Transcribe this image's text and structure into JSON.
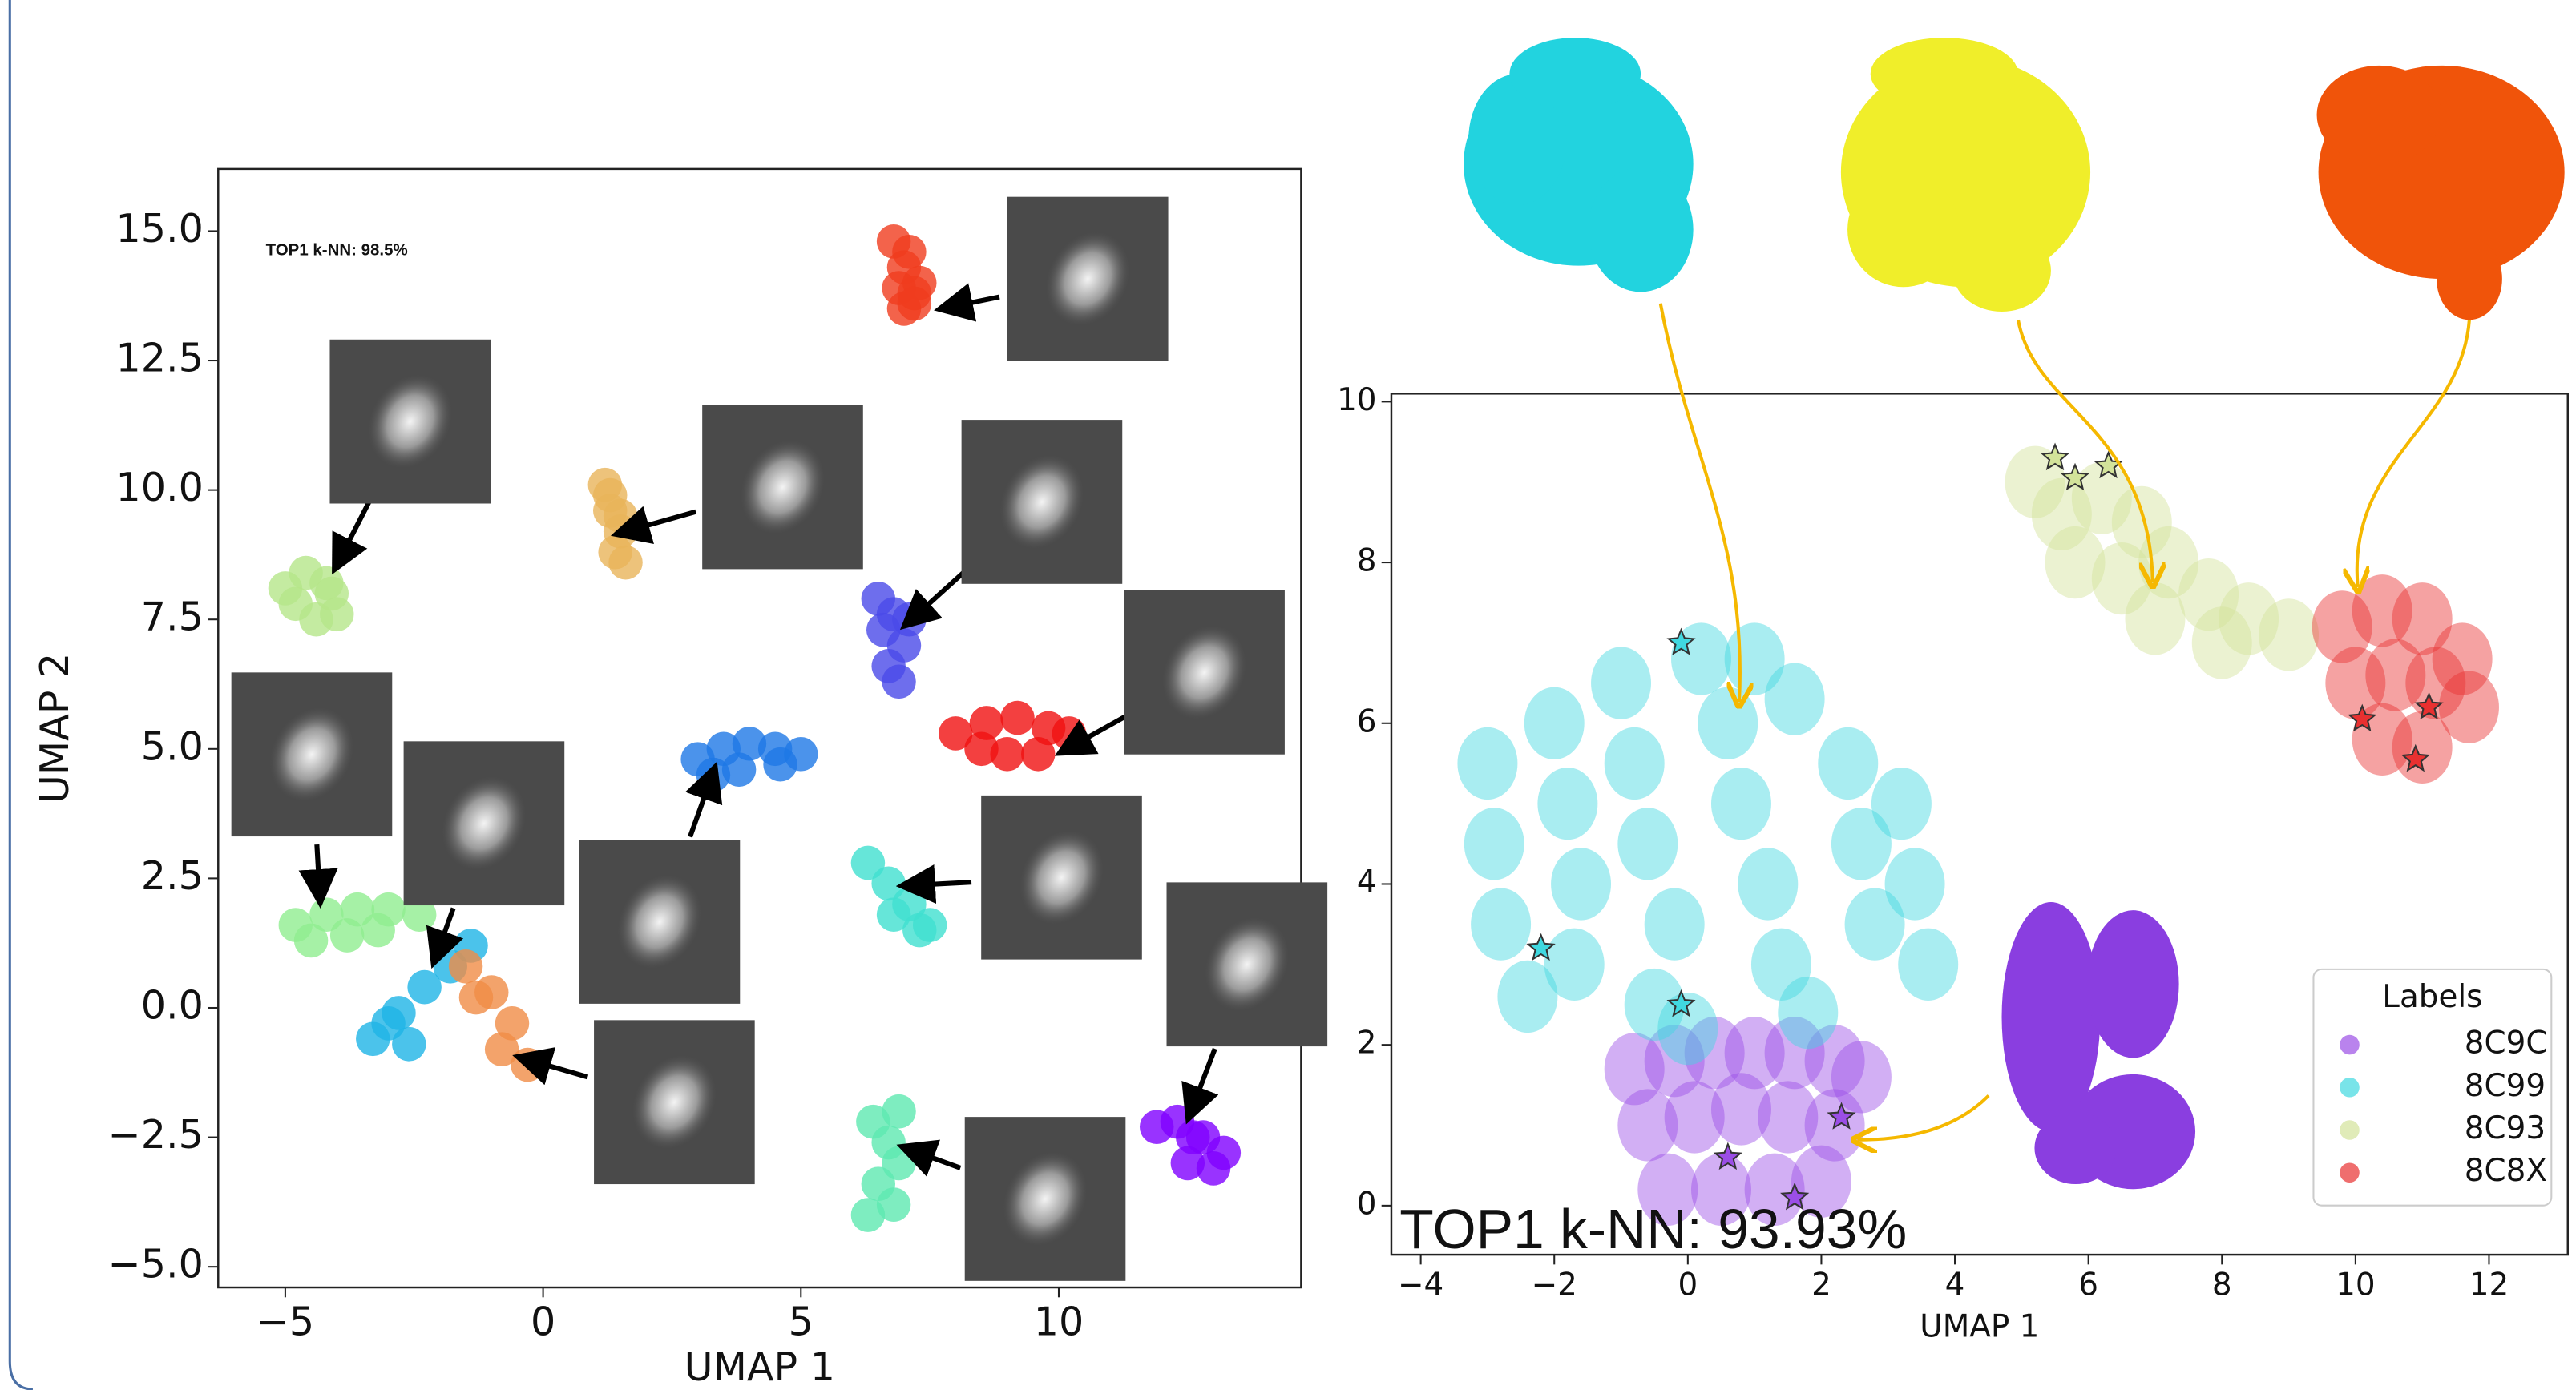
{
  "chart_data": [
    {
      "type": "scatter",
      "annotation": "TOP1 k-NN: 98.5%",
      "xlabel": "UMAP 1",
      "ylabel": "UMAP 2",
      "xlim": [
        -6.3,
        14.7
      ],
      "ylim": [
        -5.4,
        16.2
      ],
      "xticks": [
        {
          "value": -5,
          "label": "−5"
        },
        0,
        5,
        10
      ],
      "yticks": [
        {
          "value": -5,
          "label": "−5.0"
        },
        {
          "value": -2.5,
          "label": "−2.5"
        },
        {
          "value": 0,
          "label": "0.0"
        },
        {
          "value": 2.5,
          "label": "2.5"
        },
        {
          "value": 5,
          "label": "5.0"
        },
        {
          "value": 7.5,
          "label": "7.5"
        },
        {
          "value": 10,
          "label": "10.0"
        },
        {
          "value": 12.5,
          "label": "12.5"
        },
        {
          "value": 15,
          "label": "15.0"
        }
      ],
      "series": [
        {
          "color": "#f03c1e",
          "x": [
            6.8,
            7.0,
            7.2,
            6.9,
            7.1,
            7.3,
            7.0,
            7.2
          ],
          "y": [
            14.8,
            14.3,
            13.8,
            13.9,
            14.6,
            14.0,
            13.5,
            13.6
          ]
        },
        {
          "color": "#e8b45a",
          "x": [
            1.2,
            1.3,
            1.5,
            1.4,
            1.6,
            1.3,
            1.5
          ],
          "y": [
            10.1,
            9.6,
            9.2,
            8.8,
            8.6,
            9.9,
            9.5
          ]
        },
        {
          "color": "#b5e68a",
          "x": [
            -5.0,
            -4.6,
            -4.2,
            -4.0,
            -4.8,
            -4.4,
            -4.1
          ],
          "y": [
            8.1,
            8.4,
            8.2,
            7.6,
            7.8,
            7.5,
            8.0
          ]
        },
        {
          "color": "#4a4ae8",
          "x": [
            6.5,
            6.8,
            7.0,
            6.7,
            6.6,
            7.1,
            6.9
          ],
          "y": [
            7.9,
            7.6,
            7.0,
            6.6,
            7.3,
            7.5,
            6.3
          ]
        },
        {
          "color": "#f01010",
          "x": [
            8.0,
            8.6,
            9.2,
            9.8,
            9.0,
            9.6,
            8.5,
            10.2
          ],
          "y": [
            5.3,
            5.5,
            5.6,
            5.4,
            4.9,
            4.9,
            5.0,
            5.3
          ]
        },
        {
          "color": "#1e78e6",
          "x": [
            3.0,
            3.5,
            4.0,
            4.5,
            5.0,
            3.3,
            3.8,
            4.6
          ],
          "y": [
            4.8,
            5.0,
            5.1,
            5.0,
            4.9,
            4.5,
            4.6,
            4.7
          ]
        },
        {
          "color": "#40e0d0",
          "x": [
            6.3,
            6.7,
            7.1,
            7.5,
            6.8,
            7.3
          ],
          "y": [
            2.8,
            2.4,
            2.0,
            1.6,
            1.8,
            1.5
          ]
        },
        {
          "color": "#90ee90",
          "x": [
            -4.8,
            -4.2,
            -3.6,
            -3.0,
            -2.4,
            -4.5,
            -3.8,
            -3.2
          ],
          "y": [
            1.6,
            1.8,
            1.9,
            1.9,
            1.8,
            1.3,
            1.4,
            1.5
          ]
        },
        {
          "color": "#1eb4e6",
          "x": [
            -3.3,
            -2.8,
            -2.3,
            -1.8,
            -1.4,
            -2.6,
            -3.0
          ],
          "y": [
            -0.6,
            -0.1,
            0.4,
            0.8,
            1.2,
            -0.7,
            -0.3
          ]
        },
        {
          "color": "#f08c46",
          "x": [
            -1.5,
            -1.0,
            -0.6,
            -0.3,
            -1.3,
            -0.8
          ],
          "y": [
            0.8,
            0.3,
            -0.3,
            -1.1,
            0.2,
            -0.8
          ]
        },
        {
          "color": "#8000ff",
          "x": [
            11.9,
            12.3,
            12.8,
            13.2,
            12.5,
            13.0,
            12.6
          ],
          "y": [
            -2.3,
            -2.2,
            -2.5,
            -2.8,
            -3.0,
            -3.1,
            -2.5
          ]
        },
        {
          "color": "#5ee8b0",
          "x": [
            6.4,
            6.7,
            6.9,
            6.5,
            6.8,
            6.3,
            6.9
          ],
          "y": [
            -2.2,
            -2.6,
            -3.0,
            -3.4,
            -3.8,
            -4.0,
            -2.0
          ]
        }
      ]
    },
    {
      "type": "scatter",
      "annotation": "TOP1 k-NN: 93.93%",
      "xlabel": "UMAP 1",
      "xlim": [
        -4.44,
        13.18
      ],
      "ylim": [
        -0.61,
        10.1
      ],
      "xticks": [
        {
          "value": -4,
          "label": "−4"
        },
        {
          "value": -2,
          "label": "−2"
        },
        0,
        2,
        4,
        6,
        8,
        10,
        12
      ],
      "yticks": [
        0,
        2,
        4,
        6,
        8,
        10
      ],
      "legend": {
        "title": "Labels",
        "loc": "lower right"
      },
      "series": [
        {
          "name": "8C9C",
          "color": "#9b4ee6",
          "x": [
            -0.8,
            -0.2,
            0.4,
            1.0,
            1.6,
            2.2,
            2.6,
            -0.6,
            0.1,
            0.8,
            1.5,
            2.2,
            -0.3,
            0.5,
            1.3,
            2.0
          ],
          "y": [
            1.7,
            1.8,
            1.9,
            1.9,
            1.9,
            1.8,
            1.6,
            1.0,
            1.1,
            1.2,
            1.1,
            1.0,
            0.2,
            0.2,
            0.2,
            0.3
          ],
          "stars": {
            "x": [
              0.6,
              1.6,
              2.3
            ],
            "y": [
              0.6,
              0.1,
              1.1
            ]
          }
        },
        {
          "name": "8C99",
          "color": "#40d8e0",
          "x": [
            -3.0,
            -2.9,
            -2.8,
            -2.0,
            -1.8,
            -1.6,
            -1.7,
            -1.0,
            -0.8,
            -0.6,
            -0.5,
            -0.2,
            0.2,
            0.6,
            0.8,
            1.2,
            1.4,
            1.6,
            1.8,
            2.4,
            2.6,
            2.8,
            3.2,
            3.4,
            3.6,
            0.0,
            -2.4,
            1.0
          ],
          "y": [
            5.5,
            4.5,
            3.5,
            6.0,
            5.0,
            4.0,
            3.0,
            6.5,
            5.5,
            4.5,
            2.5,
            3.5,
            6.8,
            6.0,
            5.0,
            4.0,
            3.0,
            6.3,
            2.4,
            5.5,
            4.5,
            3.5,
            5.0,
            4.0,
            3.0,
            2.2,
            2.6,
            6.8
          ],
          "stars": {
            "x": [
              -0.1,
              -2.2,
              -0.1
            ],
            "y": [
              7.0,
              3.2,
              2.5
            ]
          }
        },
        {
          "name": "8C93",
          "color": "#d3e39a",
          "x": [
            5.2,
            5.6,
            6.2,
            6.8,
            5.8,
            6.5,
            7.2,
            7.8,
            8.4,
            9.0,
            7.0,
            8.0
          ],
          "y": [
            9.0,
            8.6,
            8.8,
            8.5,
            8.0,
            7.8,
            8.0,
            7.6,
            7.3,
            7.1,
            7.3,
            7.0
          ],
          "stars": {
            "x": [
              5.5,
              5.8,
              6.3
            ],
            "y": [
              9.3,
              9.05,
              9.2
            ]
          }
        },
        {
          "name": "8C8X",
          "color": "#e83030",
          "x": [
            9.8,
            10.4,
            11.0,
            11.6,
            10.0,
            10.6,
            11.2,
            11.7,
            10.4,
            11.0
          ],
          "y": [
            7.2,
            7.4,
            7.3,
            6.8,
            6.5,
            6.6,
            6.5,
            6.2,
            5.8,
            5.7
          ],
          "stars": {
            "x": [
              10.1,
              11.1,
              10.9
            ],
            "y": [
              6.05,
              6.2,
              5.55
            ]
          }
        }
      ]
    }
  ]
}
